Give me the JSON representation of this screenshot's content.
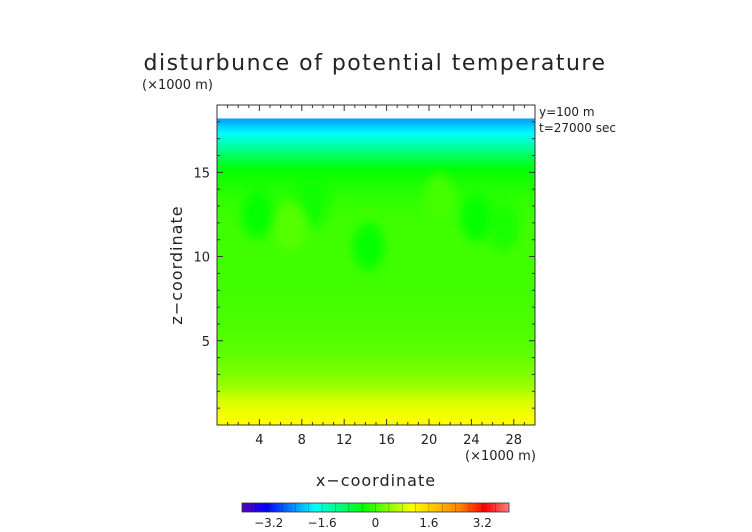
{
  "chart_data": {
    "type": "heatmap",
    "title": "disturbunce of potential temperature",
    "xlabel": "x−coordinate",
    "ylabel": "z−coordinate",
    "x_unit": "(×1000 m)",
    "z_unit": "(×1000 m)",
    "annotations": [
      "y=100 m",
      "t=27000 sec"
    ],
    "xlim": [
      0,
      30
    ],
    "zlim": [
      0,
      19
    ],
    "x_ticks": [
      4,
      8,
      12,
      16,
      20,
      24,
      28
    ],
    "z_ticks": [
      5,
      10,
      15
    ],
    "colorbar": {
      "range": [
        -4,
        4
      ],
      "ticks": [
        -3.2,
        -1.6,
        0,
        1.6,
        3.2
      ],
      "tick_labels": [
        "−3.2",
        "−1.6",
        "0",
        "1.6",
        "3.2"
      ],
      "stops": [
        "#5a00b4",
        "#0000ff",
        "#0080ff",
        "#00ffff",
        "#00ff80",
        "#00ff00",
        "#80ff00",
        "#ffff00",
        "#ffc000",
        "#ff8000",
        "#ff0000",
        "#ff8080"
      ]
    },
    "data_top_z": 18.2,
    "vertical_profile": [
      {
        "z": 0.0,
        "value": 1.1
      },
      {
        "z": 0.5,
        "value": 1.05
      },
      {
        "z": 1.0,
        "value": 0.95
      },
      {
        "z": 1.5,
        "value": 0.85
      },
      {
        "z": 2.0,
        "value": 0.6
      },
      {
        "z": 3.0,
        "value": 0.35
      },
      {
        "z": 4.0,
        "value": 0.2
      },
      {
        "z": 5.0,
        "value": 0.1
      },
      {
        "z": 8.0,
        "value": 0.0
      },
      {
        "z": 11.5,
        "value": 0.0
      },
      {
        "z": 13.0,
        "value": -0.05
      },
      {
        "z": 15.0,
        "value": -0.3
      },
      {
        "z": 16.0,
        "value": -0.9
      },
      {
        "z": 17.0,
        "value": -1.6
      },
      {
        "z": 18.2,
        "value": -2.4
      }
    ],
    "anomalies": [
      {
        "x": 3.8,
        "z": 12.5,
        "value": -0.35
      },
      {
        "x": 14.3,
        "z": 10.6,
        "value": -0.35
      },
      {
        "x": 24.5,
        "z": 12.3,
        "value": -0.35
      },
      {
        "x": 9.0,
        "z": 13.2,
        "value": -0.25
      },
      {
        "x": 27.0,
        "z": 11.8,
        "value": -0.25
      },
      {
        "x": 7.0,
        "z": 11.8,
        "value": 0.15
      },
      {
        "x": 21.0,
        "z": 13.5,
        "value": 0.15
      }
    ]
  }
}
